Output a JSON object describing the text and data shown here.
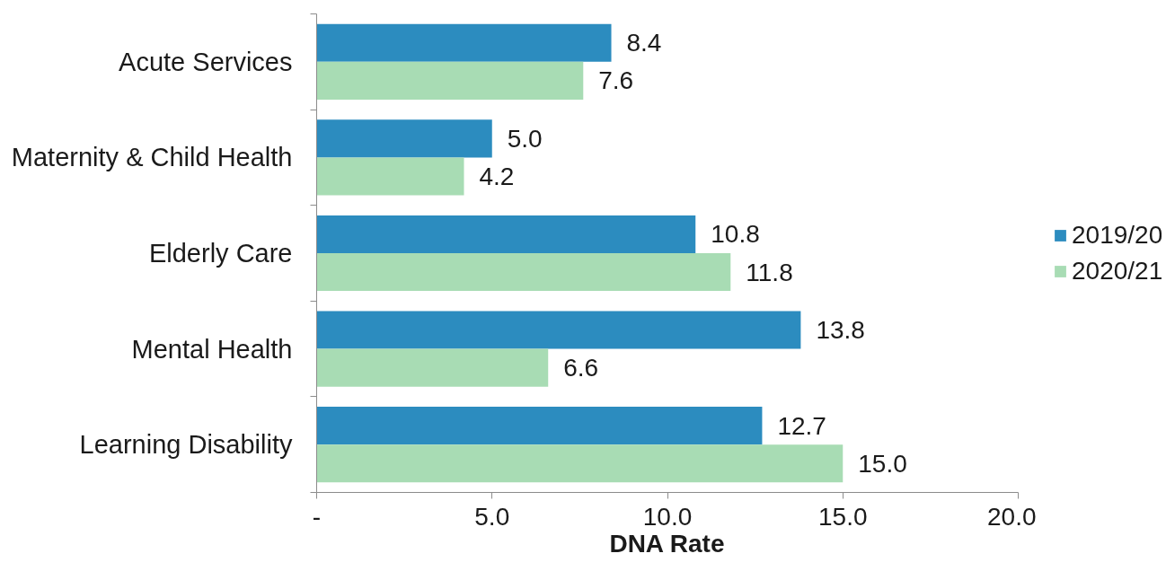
{
  "chart_data": {
    "type": "bar",
    "orientation": "horizontal",
    "categories": [
      "Acute Services",
      "Maternity & Child Health",
      "Elderly Care",
      "Mental Health",
      "Learning Disability"
    ],
    "series": [
      {
        "name": "2019/20",
        "color": "#2c8cbf",
        "values": [
          8.4,
          5.0,
          10.8,
          13.8,
          12.7
        ],
        "value_labels": [
          "8.4",
          "5.0",
          "10.8",
          "13.8",
          "12.7"
        ]
      },
      {
        "name": "2020/21",
        "color": "#a8dcb4",
        "values": [
          7.6,
          4.2,
          11.8,
          6.6,
          15.0
        ],
        "value_labels": [
          "7.6",
          "4.2",
          "11.8",
          "6.6",
          "15.0"
        ]
      }
    ],
    "xlabel": "DNA Rate",
    "xlim": [
      0,
      20
    ],
    "xticks": [
      {
        "value": 0,
        "label": "-"
      },
      {
        "value": 5,
        "label": "5.0"
      },
      {
        "value": 10,
        "label": "10.0"
      },
      {
        "value": 15,
        "label": "15.0"
      },
      {
        "value": 20,
        "label": "20.0"
      }
    ],
    "grid": false,
    "legend": "right"
  }
}
